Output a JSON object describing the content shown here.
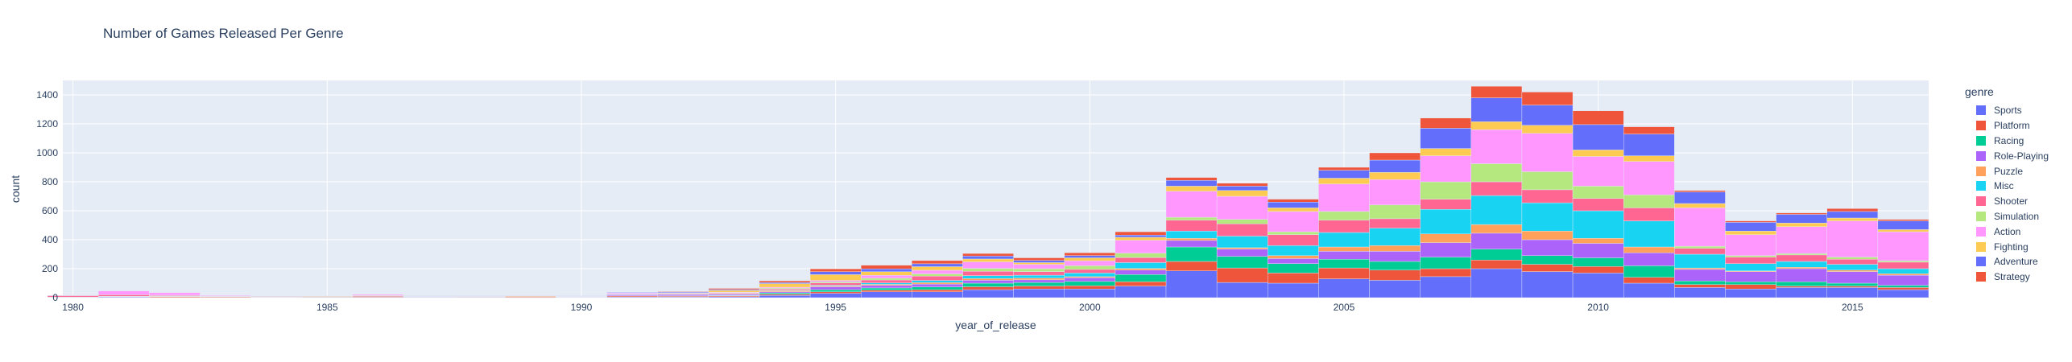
{
  "chart_data": {
    "type": "bar",
    "title": "Number of Games Released Per Genre",
    "xlabel": "year_of_release",
    "ylabel": "count",
    "xlim": [
      1979.8,
      2016.5
    ],
    "ylim": [
      0,
      1500
    ],
    "x_ticks": [
      1980,
      1985,
      1990,
      1995,
      2000,
      2005,
      2010,
      2015
    ],
    "y_ticks": [
      0,
      200,
      400,
      600,
      800,
      1000,
      1200,
      1400
    ],
    "stacked": true,
    "grid": true,
    "legend_title": "genre",
    "legend_position": "right",
    "x": [
      1980,
      1981,
      1982,
      1983,
      1984,
      1985,
      1986,
      1987,
      1988,
      1989,
      1990,
      1991,
      1992,
      1993,
      1994,
      1995,
      1996,
      1997,
      1998,
      1999,
      2000,
      2001,
      2002,
      2003,
      2004,
      2005,
      2006,
      2007,
      2008,
      2009,
      2010,
      2011,
      2012,
      2013,
      2014,
      2015,
      2016
    ],
    "series": [
      {
        "name": "Sports",
        "color": "#636efa",
        "values": [
          1,
          4,
          2,
          1,
          2,
          1,
          3,
          2,
          1,
          1,
          1,
          4,
          4,
          6,
          15,
          30,
          40,
          40,
          55,
          60,
          60,
          80,
          185,
          105,
          100,
          130,
          120,
          145,
          200,
          180,
          170,
          100,
          70,
          60,
          70,
          70,
          55
        ]
      },
      {
        "name": "Platform",
        "color": "#ef553b",
        "values": [
          0,
          3,
          5,
          5,
          1,
          4,
          6,
          2,
          3,
          5,
          2,
          7,
          6,
          6,
          8,
          10,
          12,
          14,
          20,
          20,
          22,
          30,
          65,
          100,
          70,
          75,
          70,
          55,
          60,
          50,
          45,
          40,
          20,
          30,
          10,
          10,
          15
        ]
      },
      {
        "name": "Racing",
        "color": "#00cc96",
        "values": [
          0,
          1,
          1,
          2,
          2,
          1,
          1,
          1,
          1,
          0,
          1,
          2,
          3,
          4,
          10,
          15,
          15,
          20,
          25,
          25,
          30,
          50,
          100,
          80,
          65,
          60,
          60,
          80,
          75,
          60,
          60,
          80,
          25,
          20,
          30,
          20,
          15
        ]
      },
      {
        "name": "Role-Playing",
        "color": "#ab63fa",
        "values": [
          0,
          0,
          0,
          0,
          0,
          0,
          1,
          3,
          3,
          2,
          2,
          7,
          8,
          7,
          8,
          20,
          18,
          20,
          20,
          18,
          25,
          30,
          45,
          50,
          35,
          55,
          70,
          100,
          110,
          110,
          100,
          90,
          80,
          70,
          90,
          80,
          70
        ]
      },
      {
        "name": "Puzzle",
        "color": "#ffa15a",
        "values": [
          2,
          2,
          3,
          1,
          3,
          4,
          1,
          0,
          1,
          5,
          2,
          3,
          3,
          3,
          7,
          6,
          7,
          10,
          12,
          12,
          8,
          12,
          15,
          10,
          20,
          30,
          40,
          60,
          60,
          60,
          35,
          40,
          10,
          5,
          10,
          10,
          10
        ]
      },
      {
        "name": "Misc",
        "color": "#19d3f3",
        "values": [
          1,
          0,
          1,
          1,
          1,
          0,
          0,
          1,
          0,
          1,
          0,
          1,
          1,
          1,
          4,
          5,
          10,
          15,
          20,
          20,
          25,
          40,
          50,
          80,
          70,
          100,
          120,
          170,
          200,
          195,
          190,
          180,
          95,
          50,
          40,
          40,
          35
        ]
      },
      {
        "name": "Shooter",
        "color": "#ff6692",
        "values": [
          10,
          10,
          5,
          2,
          3,
          1,
          4,
          2,
          1,
          1,
          1,
          3,
          4,
          5,
          8,
          15,
          20,
          30,
          30,
          25,
          25,
          35,
          75,
          85,
          75,
          85,
          65,
          70,
          95,
          90,
          85,
          90,
          40,
          45,
          45,
          35,
          45
        ]
      },
      {
        "name": "Simulation",
        "color": "#b6e880",
        "values": [
          0,
          1,
          0,
          0,
          0,
          1,
          0,
          0,
          1,
          0,
          1,
          1,
          1,
          2,
          6,
          8,
          12,
          15,
          20,
          20,
          25,
          30,
          20,
          30,
          20,
          60,
          95,
          120,
          125,
          125,
          85,
          90,
          15,
          10,
          10,
          15,
          10
        ]
      },
      {
        "name": "Action",
        "color": "#ff97ff",
        "values": [
          1,
          25,
          17,
          5,
          1,
          2,
          6,
          2,
          2,
          2,
          1,
          6,
          1,
          4,
          6,
          10,
          20,
          25,
          45,
          30,
          35,
          90,
          180,
          160,
          140,
          190,
          175,
          180,
          235,
          265,
          205,
          230,
          265,
          145,
          185,
          250,
          200
        ]
      },
      {
        "name": "Fighting",
        "color": "#fecb52",
        "values": [
          0,
          0,
          0,
          0,
          0,
          1,
          0,
          2,
          0,
          0,
          0,
          1,
          4,
          12,
          25,
          40,
          25,
          25,
          20,
          12,
          20,
          20,
          35,
          40,
          25,
          40,
          50,
          50,
          55,
          55,
          45,
          40,
          30,
          25,
          25,
          20,
          15
        ]
      },
      {
        "name": "Adventure",
        "color": "#636efa",
        "values": [
          0,
          0,
          0,
          1,
          0,
          0,
          0,
          1,
          1,
          0,
          1,
          4,
          5,
          6,
          7,
          20,
          20,
          20,
          20,
          15,
          15,
          15,
          40,
          30,
          40,
          55,
          85,
          140,
          165,
          140,
          175,
          150,
          80,
          60,
          60,
          45,
          60
        ]
      },
      {
        "name": "Strategy",
        "color": "#ef553b",
        "values": [
          0,
          0,
          0,
          0,
          0,
          0,
          0,
          0,
          0,
          0,
          0,
          2,
          4,
          8,
          12,
          20,
          25,
          22,
          18,
          18,
          20,
          23,
          20,
          20,
          20,
          20,
          50,
          70,
          80,
          90,
          95,
          50,
          10,
          10,
          10,
          20,
          10
        ]
      }
    ]
  }
}
